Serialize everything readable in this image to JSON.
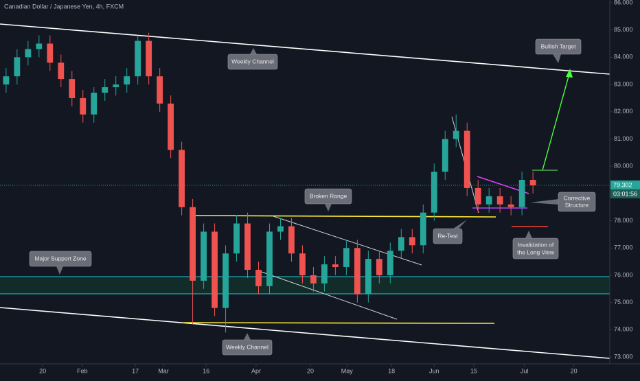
{
  "chart_data": {
    "type": "candlestick",
    "title": "Canadian Dollar / Japanese Yen, 4h, FXCM",
    "up_color": "#26a69a",
    "down_color": "#ef5350",
    "xlim": [
      0,
      100
    ],
    "xticks": [
      {
        "value": 7,
        "label": "20"
      },
      {
        "value": 13.5,
        "label": "Feb"
      },
      {
        "value": 22.2,
        "label": "17"
      },
      {
        "value": 26.8,
        "label": "Mar"
      },
      {
        "value": 33.8,
        "label": "16"
      },
      {
        "value": 42,
        "label": "Apr"
      },
      {
        "value": 50.9,
        "label": "20"
      },
      {
        "value": 56.9,
        "label": "May"
      },
      {
        "value": 64.2,
        "label": "18"
      },
      {
        "value": 71.2,
        "label": "Jun"
      },
      {
        "value": 77.7,
        "label": "15"
      },
      {
        "value": 86,
        "label": "Jul"
      },
      {
        "value": 94.1,
        "label": "20"
      }
    ],
    "ylim": [
      72.75,
      86.1
    ],
    "yticks": [
      {
        "value": 86,
        "label": "86.000"
      },
      {
        "value": 85,
        "label": "85.000"
      },
      {
        "value": 84,
        "label": "84.000"
      },
      {
        "value": 83,
        "label": "83.000"
      },
      {
        "value": 82,
        "label": "82.000"
      },
      {
        "value": 81,
        "label": "81.000"
      },
      {
        "value": 80,
        "label": "80.000"
      },
      {
        "value": 79,
        "label": "79.000"
      },
      {
        "value": 78,
        "label": "78.000"
      },
      {
        "value": 77,
        "label": "77.000"
      },
      {
        "value": 76,
        "label": "76.000"
      },
      {
        "value": 75,
        "label": "75.000"
      },
      {
        "value": 74,
        "label": "74.000"
      },
      {
        "value": 73,
        "label": "73.000"
      }
    ],
    "last_price": 79.302,
    "countdown": "03:01:56",
    "x": [
      1.0,
      2.8,
      4.6,
      6.4,
      8.2,
      10.0,
      11.8,
      13.6,
      15.4,
      17.2,
      19.0,
      20.8,
      22.6,
      24.4,
      26.2,
      28.0,
      29.8,
      31.6,
      33.4,
      35.2,
      37.0,
      38.8,
      40.6,
      42.4,
      44.2,
      46.0,
      47.8,
      49.6,
      51.4,
      53.2,
      55.0,
      56.8,
      58.6,
      60.4,
      62.2,
      64.0,
      65.8,
      67.6,
      69.4,
      71.2,
      73.0,
      74.8,
      76.6,
      78.4,
      80.2,
      82.0,
      83.8,
      85.6,
      87.4
    ],
    "open": [
      83.0,
      83.3,
      84.0,
      84.3,
      84.5,
      83.8,
      83.2,
      82.5,
      81.9,
      82.7,
      82.9,
      83.0,
      83.3,
      84.6,
      83.3,
      82.3,
      80.6,
      78.5,
      75.8,
      77.6,
      74.8,
      76.8,
      77.9,
      76.2,
      75.6,
      77.6,
      77.8,
      76.8,
      76.0,
      75.7,
      76.4,
      76.3,
      77.0,
      75.3,
      76.6,
      76.0,
      76.9,
      77.4,
      77.1,
      78.3,
      79.8,
      81.0,
      81.3,
      79.2,
      78.6,
      78.9,
      78.6,
      78.5,
      79.5
    ],
    "high": [
      83.6,
      84.3,
      84.6,
      84.8,
      84.8,
      84.1,
      83.5,
      82.8,
      82.9,
      83.2,
      83.3,
      83.6,
      84.8,
      84.9,
      83.6,
      82.6,
      80.9,
      78.8,
      77.9,
      77.9,
      77.1,
      78.2,
      78.3,
      76.5,
      77.9,
      78.1,
      78.1,
      77.1,
      76.3,
      76.7,
      76.7,
      77.3,
      77.3,
      76.9,
      76.9,
      77.2,
      77.7,
      77.7,
      78.6,
      80.1,
      81.3,
      81.9,
      81.6,
      79.5,
      79.2,
      79.2,
      78.9,
      79.8,
      79.8
    ],
    "low": [
      82.7,
      83.0,
      83.7,
      84.0,
      83.5,
      82.9,
      82.2,
      81.6,
      81.6,
      82.4,
      82.6,
      82.7,
      83.0,
      83.0,
      82.0,
      80.3,
      78.2,
      74.2,
      75.5,
      74.5,
      73.9,
      76.5,
      75.9,
      75.3,
      75.3,
      77.3,
      76.5,
      75.7,
      75.4,
      75.4,
      76.0,
      76.0,
      75.0,
      75.0,
      75.7,
      75.7,
      76.6,
      76.8,
      76.8,
      78.0,
      79.5,
      80.7,
      78.9,
      78.3,
      78.3,
      78.3,
      78.2,
      78.2,
      79.0
    ],
    "close": [
      83.3,
      84.0,
      84.3,
      84.5,
      83.8,
      83.2,
      82.5,
      81.9,
      82.7,
      82.9,
      83.0,
      83.3,
      84.6,
      83.3,
      82.3,
      80.6,
      78.5,
      75.8,
      77.6,
      74.8,
      76.8,
      77.9,
      76.2,
      75.6,
      77.6,
      77.8,
      76.8,
      76.0,
      75.7,
      76.4,
      76.3,
      77.0,
      75.3,
      76.6,
      76.0,
      76.9,
      77.4,
      77.1,
      78.3,
      79.8,
      81.0,
      81.3,
      79.2,
      78.6,
      78.9,
      78.6,
      78.5,
      79.5,
      79.3
    ],
    "annotations": {
      "weekly_channel_top": "Weekly Channel",
      "weekly_channel_bottom": "Weekly Channel",
      "broken_range": "Broken Range",
      "support_zone": "Major Support Zone",
      "retest": "Re-Test",
      "corrective": [
        "Corrective",
        "Structure"
      ],
      "invalidation": [
        "Invalidation of",
        "the Long View"
      ],
      "target": "Bullish Target"
    }
  }
}
